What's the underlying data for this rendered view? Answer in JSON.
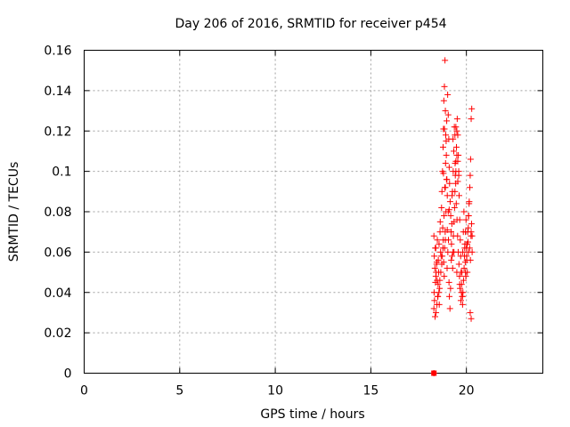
{
  "chart_data": {
    "type": "scatter",
    "title": "Day 206 of 2016, SRMTID for receiver p454",
    "xlabel": "GPS time / hours",
    "ylabel": "SRMTID / TECUs",
    "xlim": [
      0,
      24
    ],
    "ylim": [
      0,
      0.16
    ],
    "xticks": [
      0,
      5,
      10,
      15,
      20
    ],
    "yticks": [
      0,
      0.02,
      0.04,
      0.06,
      0.08,
      0.1,
      0.12,
      0.14,
      0.16
    ],
    "xtick_labels": [
      "0",
      "5",
      "10",
      "15",
      "20"
    ],
    "ytick_labels": [
      "0",
      "0.02",
      "0.04",
      "0.06",
      "0.08",
      "0.1",
      "0.12",
      "0.14",
      "0.16"
    ],
    "grid": true,
    "marker": "plus",
    "color": "#ff0000",
    "series": [
      {
        "x": [
          18.3,
          18.32,
          18.35,
          18.38,
          18.4,
          18.45,
          18.5,
          18.55,
          18.6,
          18.65,
          18.3,
          18.33,
          18.36,
          18.4,
          18.44,
          18.48,
          18.52,
          18.58,
          18.62,
          18.68,
          18.31,
          18.37,
          18.42,
          18.47,
          18.53,
          18.57,
          18.63,
          18.7,
          18.72,
          18.75,
          18.78,
          18.8,
          18.82,
          18.85,
          18.88,
          18.9,
          18.92,
          18.95,
          18.98,
          19.0,
          18.76,
          18.79,
          18.83,
          18.87,
          18.91,
          18.94,
          18.97,
          19.02,
          19.05,
          19.08,
          19.1,
          19.12,
          19.15,
          19.18,
          19.2,
          19.22,
          19.25,
          19.28,
          19.3,
          19.32,
          19.35,
          19.38,
          19.4,
          19.42,
          19.45,
          19.48,
          19.5,
          19.52,
          19.55,
          19.58,
          19.6,
          19.62,
          19.65,
          19.68,
          19.7,
          19.72,
          19.75,
          19.78,
          19.8,
          19.82,
          19.85,
          19.88,
          19.9,
          19.92,
          19.95,
          19.98,
          20.0,
          20.02,
          20.05,
          20.08,
          20.1,
          20.12,
          20.15,
          20.18,
          20.2,
          20.22,
          20.25,
          20.28,
          20.3,
          18.81,
          18.84,
          18.86,
          18.89,
          18.93,
          18.96,
          18.99,
          19.03,
          19.06,
          19.09,
          19.11,
          19.14,
          19.17,
          19.21,
          19.24,
          19.27,
          19.31,
          19.34,
          19.37,
          19.41,
          19.44,
          19.47,
          19.51,
          19.54,
          19.57,
          19.61,
          19.64,
          19.67,
          19.71,
          19.74,
          19.77,
          19.81,
          19.84,
          19.87,
          19.91,
          19.94,
          19.97,
          20.01,
          20.04,
          20.07,
          20.11,
          20.14,
          20.17,
          20.21,
          20.24,
          20.27,
          18.41,
          18.46,
          18.51,
          18.56,
          18.61,
          18.66,
          18.71,
          18.74,
          18.77,
          18.9,
          19.05,
          19.2,
          19.35,
          19.5,
          19.65,
          19.8,
          19.95,
          20.1,
          20.25,
          18.8,
          18.85,
          19.3,
          19.4,
          19.45,
          19.55,
          19.6,
          18.9,
          19.0,
          19.1,
          19.25,
          19.45,
          19.5,
          19.55,
          20.2,
          20.25,
          20.3,
          18.3
        ],
        "y": [
          0.068,
          0.058,
          0.052,
          0.045,
          0.062,
          0.055,
          0.038,
          0.05,
          0.042,
          0.06,
          0.032,
          0.036,
          0.028,
          0.048,
          0.054,
          0.066,
          0.044,
          0.034,
          0.07,
          0.058,
          0.04,
          0.062,
          0.05,
          0.046,
          0.056,
          0.064,
          0.075,
          0.082,
          0.09,
          0.1,
          0.112,
          0.121,
          0.135,
          0.142,
          0.155,
          0.13,
          0.118,
          0.108,
          0.096,
          0.088,
          0.072,
          0.066,
          0.078,
          0.092,
          0.104,
          0.115,
          0.125,
          0.138,
          0.128,
          0.116,
          0.102,
          0.094,
          0.085,
          0.078,
          0.07,
          0.064,
          0.058,
          0.052,
          0.06,
          0.068,
          0.075,
          0.082,
          0.09,
          0.098,
          0.105,
          0.112,
          0.12,
          0.126,
          0.118,
          0.108,
          0.098,
          0.088,
          0.076,
          0.066,
          0.058,
          0.05,
          0.044,
          0.038,
          0.034,
          0.04,
          0.046,
          0.052,
          0.058,
          0.064,
          0.07,
          0.076,
          0.062,
          0.056,
          0.05,
          0.065,
          0.072,
          0.078,
          0.085,
          0.092,
          0.098,
          0.106,
          0.126,
          0.131,
          0.068,
          0.055,
          0.048,
          0.062,
          0.07,
          0.08,
          0.096,
          0.052,
          0.06,
          0.066,
          0.045,
          0.038,
          0.032,
          0.042,
          0.056,
          0.074,
          0.09,
          0.1,
          0.11,
          0.122,
          0.104,
          0.094,
          0.084,
          0.076,
          0.068,
          0.06,
          0.054,
          0.048,
          0.042,
          0.036,
          0.04,
          0.05,
          0.06,
          0.07,
          0.08,
          0.062,
          0.055,
          0.048,
          0.058,
          0.064,
          0.07,
          0.078,
          0.084,
          0.062,
          0.056,
          0.068,
          0.074,
          0.03,
          0.034,
          0.038,
          0.04,
          0.046,
          0.05,
          0.054,
          0.058,
          0.062,
          0.092,
          0.08,
          0.07,
          0.06,
          0.05,
          0.044,
          0.038,
          0.05,
          0.06,
          0.07,
          0.099,
          0.121,
          0.116,
          0.118,
          0.122,
          0.105,
          0.1,
          0.066,
          0.071,
          0.081,
          0.088,
          0.1,
          0.108,
          0.095,
          0.03,
          0.027,
          0.06,
          0.0
        ],
        "marker": "plus"
      }
    ],
    "extra_marks": [
      {
        "x": 18.3,
        "y": 0.0,
        "marker": "square"
      }
    ]
  }
}
